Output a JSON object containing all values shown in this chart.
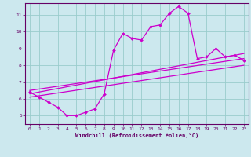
{
  "xlabel": "Windchill (Refroidissement éolien,°C)",
  "bg_color": "#cce8ee",
  "line_color": "#cc00cc",
  "grid_color": "#99cccc",
  "spine_color": "#660066",
  "bottom_bar_color": "#660099",
  "tick_label_color": "#660066",
  "xlim": [
    -0.5,
    23.5
  ],
  "ylim": [
    4.5,
    11.7
  ],
  "xticks": [
    0,
    1,
    2,
    3,
    4,
    5,
    6,
    7,
    8,
    9,
    10,
    11,
    12,
    13,
    14,
    15,
    16,
    17,
    18,
    19,
    20,
    21,
    22,
    23
  ],
  "yticks": [
    5,
    6,
    7,
    8,
    9,
    10,
    11
  ],
  "curve1_x": [
    0,
    1,
    2,
    3,
    4,
    5,
    6,
    7,
    8,
    9,
    10,
    11,
    12,
    13,
    14,
    15,
    16,
    17,
    18,
    19,
    20,
    21,
    22,
    23
  ],
  "curve1_y": [
    6.4,
    6.1,
    5.8,
    5.5,
    5.0,
    5.0,
    5.2,
    5.4,
    6.3,
    8.9,
    9.9,
    9.6,
    9.5,
    10.3,
    10.4,
    11.1,
    11.5,
    11.1,
    8.4,
    8.5,
    9.0,
    8.5,
    8.6,
    8.3
  ],
  "line2_x": [
    0,
    23
  ],
  "line2_y": [
    6.5,
    8.4
  ],
  "line3_x": [
    0,
    23
  ],
  "line3_y": [
    6.3,
    8.7
  ],
  "line4_x": [
    0,
    23
  ],
  "line4_y": [
    6.1,
    8.0
  ]
}
